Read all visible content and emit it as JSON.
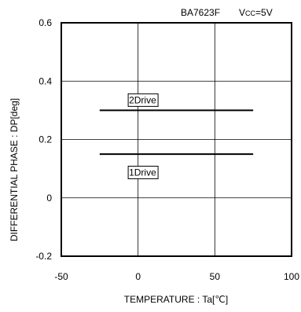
{
  "chart_data": {
    "type": "line",
    "part": "BA7623F",
    "condition": {
      "prefix": "V",
      "sub": "CC",
      "suffix": "=5V"
    },
    "xlabel": "TEMPERATURE : Ta[℃]",
    "ylabel": "DIFFERENTIAL PHASE : DP[deg]",
    "xlim": [
      -50,
      100
    ],
    "ylim": [
      -0.2,
      0.6
    ],
    "xticks": [
      -50,
      0,
      50,
      100
    ],
    "xtick_labels": [
      "-50",
      "0",
      "50",
      "100"
    ],
    "yticks": [
      -0.2,
      0,
      0.2,
      0.4,
      0.6
    ],
    "ytick_labels": [
      "-0.2",
      "0",
      "0.2",
      "0.4",
      "0.6"
    ],
    "grid": true,
    "series": [
      {
        "name": "2Drive",
        "x": [
          -25,
          75
        ],
        "y": [
          0.3,
          0.3
        ],
        "label_anchor": {
          "x": 12,
          "y": 0.335
        }
      },
      {
        "name": "1Drive",
        "x": [
          -25,
          75
        ],
        "y": [
          0.15,
          0.15
        ],
        "label_anchor": {
          "x": 12,
          "y": 0.087
        }
      }
    ]
  }
}
